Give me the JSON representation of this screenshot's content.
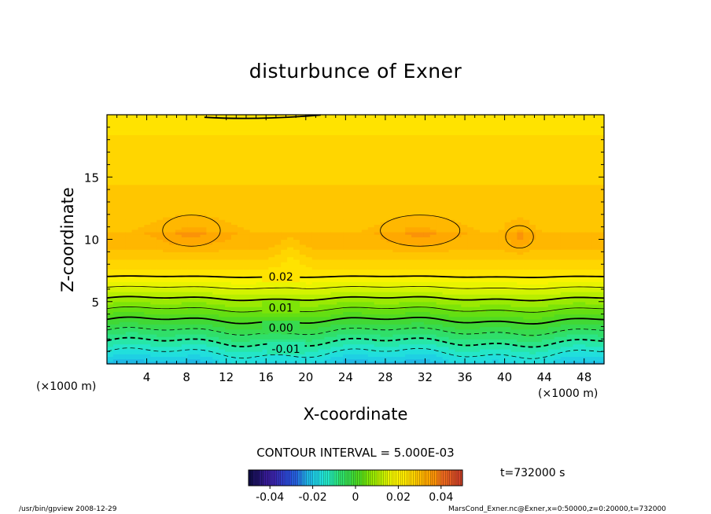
{
  "chart_data": {
    "type": "heatmap",
    "title": "disturbunce of Exner",
    "xlabel": "X-coordinate",
    "ylabel": "Z-coordinate",
    "x_unit": "(×1000 m)",
    "y_unit": "(×1000 m)",
    "xlim": [
      0,
      50
    ],
    "ylim": [
      0,
      20
    ],
    "x_ticks": [
      4,
      8,
      12,
      16,
      20,
      24,
      28,
      32,
      36,
      40,
      44,
      48
    ],
    "y_ticks": [
      5,
      10,
      15
    ],
    "contour_interval_text": "CONTOUR INTERVAL = 5.000E-03",
    "contour_labels": [
      {
        "text": "0.02",
        "x": 17.5,
        "y": 7.0
      },
      {
        "text": "0.01",
        "x": 17.5,
        "y": 4.5
      },
      {
        "text": "0.00",
        "x": 17.5,
        "y": 2.9
      },
      {
        "text": "-0.01",
        "x": 18.0,
        "y": 1.2
      }
    ],
    "colorbar": {
      "min": -0.05,
      "max": 0.05,
      "tick_labels": [
        "-0.04",
        "-0.02",
        "0",
        "0.02",
        "0.04"
      ],
      "tick_values": [
        -0.04,
        -0.02,
        0,
        0.02,
        0.04
      ]
    },
    "time_label": "t=732000 s",
    "field_summary": {
      "bottom_value": -0.02,
      "max_value": 0.032,
      "max_height_km": 10.5,
      "top_value": 0.024,
      "local_maxima_centers_km": [
        [
          8.5,
          10.5
        ],
        [
          31.5,
          10.5
        ],
        [
          41.5,
          10.2
        ]
      ]
    }
  },
  "footer": {
    "left": "/usr/bin/gpview   2008-12-29",
    "right": "MarsCond_Exner.nc@Exner,x=0:50000,z=0:20000,t=732000"
  },
  "colors": {
    "cyan": "#22e6d8",
    "green": "#7be008",
    "yellow": "#fff200",
    "orange": "#ffb400"
  }
}
